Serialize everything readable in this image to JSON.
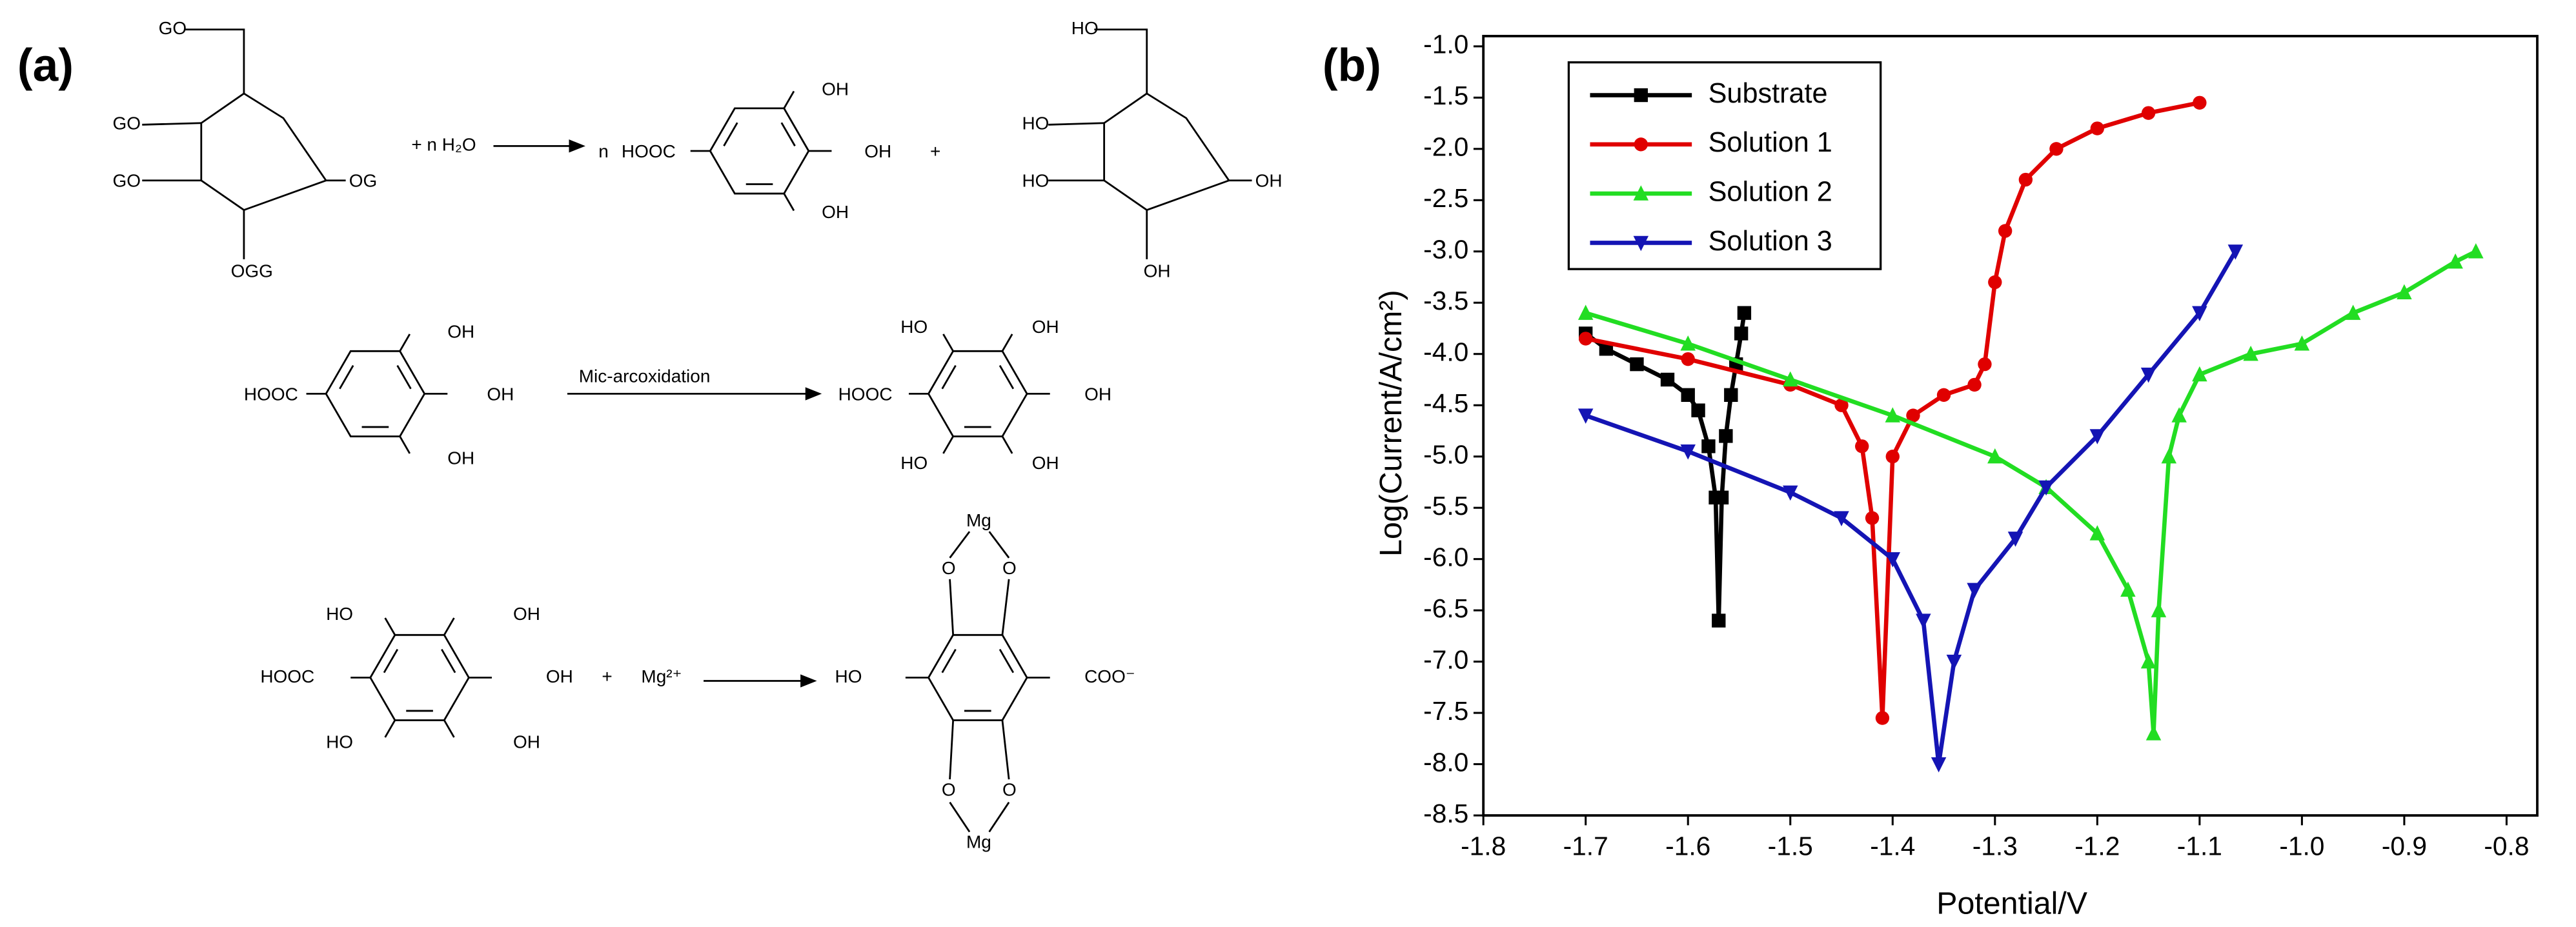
{
  "panel_a": {
    "label": "(a)",
    "texts": [
      "GO",
      "GO",
      "GO",
      "OG",
      "OGG",
      "+ n H₂O",
      "n",
      "HOOC",
      "OH",
      "OH",
      "OH",
      "+",
      "HO",
      "HO",
      "HO",
      "OH",
      "OH",
      "HOOC",
      "OH",
      "OH",
      "OH",
      "Mic-arcoxidation",
      "HOOC",
      "HO",
      "OH",
      "OH",
      "HO",
      "OH",
      "HO",
      "OH",
      "HOOC",
      "OH",
      "HO",
      "OH",
      "+",
      "Mg²⁺",
      "HO",
      "COO⁻",
      "Mg",
      "O",
      "O",
      "O",
      "O",
      "Mg"
    ]
  },
  "chart_data": {
    "type": "line",
    "panel_label": "(b)",
    "x_label": "Potential/V",
    "y_label": "Log(Current/A/cm²)",
    "xlim": [
      -1.8,
      -0.77
    ],
    "ylim": [
      -8.5,
      -0.9
    ],
    "xticks": [
      -1.8,
      -1.7,
      -1.6,
      -1.5,
      -1.4,
      -1.3,
      -1.2,
      -1.1,
      {
        "value": -1.0,
        "label": "-1.0"
      },
      -0.9,
      -0.8
    ],
    "yticks": [
      {
        "value": -1.0,
        "label": "-1.0"
      },
      -1.5,
      {
        "value": -2.0,
        "label": "-2.0"
      },
      -2.5,
      {
        "value": -3.0,
        "label": "-3.0"
      },
      -3.5,
      {
        "value": -4.0,
        "label": "-4.0"
      },
      -4.5,
      {
        "value": -5.0,
        "label": "-5.0"
      },
      -5.5,
      {
        "value": -6.0,
        "label": "-6.0"
      },
      -6.5,
      {
        "value": -7.0,
        "label": "-7.0"
      },
      -7.5,
      {
        "value": -8.0,
        "label": "-8.0"
      },
      -8.5
    ],
    "legend": "upper left",
    "series": [
      {
        "name": "Substrate",
        "color": "#000000",
        "marker": "square",
        "x": [
          -1.7,
          -1.68,
          -1.65,
          -1.62,
          -1.6,
          -1.59,
          -1.58,
          -1.573,
          -1.57,
          -1.567,
          -1.563,
          -1.558,
          -1.553,
          -1.548,
          -1.545
        ],
        "values": [
          -3.8,
          -3.95,
          -4.1,
          -4.25,
          -4.4,
          -4.55,
          -4.9,
          -5.4,
          -6.6,
          -5.4,
          -4.8,
          -4.4,
          -4.1,
          -3.8,
          -3.6
        ]
      },
      {
        "name": "Solution 1",
        "color": "#e00000",
        "marker": "circle",
        "x": [
          -1.7,
          -1.6,
          -1.5,
          -1.45,
          -1.43,
          -1.42,
          -1.41,
          -1.4,
          -1.38,
          -1.35,
          -1.32,
          -1.31,
          -1.3,
          -1.29,
          -1.27,
          -1.24,
          -1.2,
          -1.15,
          -1.1
        ],
        "values": [
          -3.85,
          -4.05,
          -4.3,
          -4.5,
          -4.9,
          -5.6,
          -7.55,
          -5.0,
          -4.6,
          -4.4,
          -4.3,
          -4.1,
          -3.3,
          -2.8,
          -2.3,
          -2.0,
          -1.8,
          -1.65,
          -1.55
        ]
      },
      {
        "name": "Solution 2",
        "color": "#22dd22",
        "marker": "triangle-up",
        "x": [
          -1.7,
          -1.6,
          -1.5,
          -1.4,
          -1.3,
          -1.25,
          -1.2,
          -1.17,
          -1.15,
          -1.145,
          -1.14,
          -1.13,
          -1.12,
          -1.1,
          -1.05,
          -1.0,
          -0.95,
          -0.9,
          -0.85,
          -0.83
        ],
        "values": [
          -3.6,
          -3.9,
          -4.25,
          -4.6,
          -5.0,
          -5.3,
          -5.75,
          -6.3,
          -7.0,
          -7.7,
          -6.5,
          -5.0,
          -4.6,
          -4.2,
          -4.0,
          -3.9,
          -3.6,
          -3.4,
          -3.1,
          -3.0
        ]
      },
      {
        "name": "Solution 3",
        "color": "#1414b4",
        "marker": "triangle-down",
        "x": [
          -1.7,
          -1.6,
          -1.5,
          -1.45,
          -1.4,
          -1.37,
          -1.355,
          -1.34,
          -1.32,
          -1.28,
          -1.25,
          -1.2,
          -1.15,
          -1.1,
          -1.065
        ],
        "values": [
          -4.6,
          -4.95,
          -5.35,
          -5.6,
          -6.0,
          -6.6,
          -8.0,
          -7.0,
          -6.3,
          -5.8,
          -5.3,
          -4.8,
          -4.2,
          -3.6,
          -3.0
        ]
      }
    ]
  }
}
